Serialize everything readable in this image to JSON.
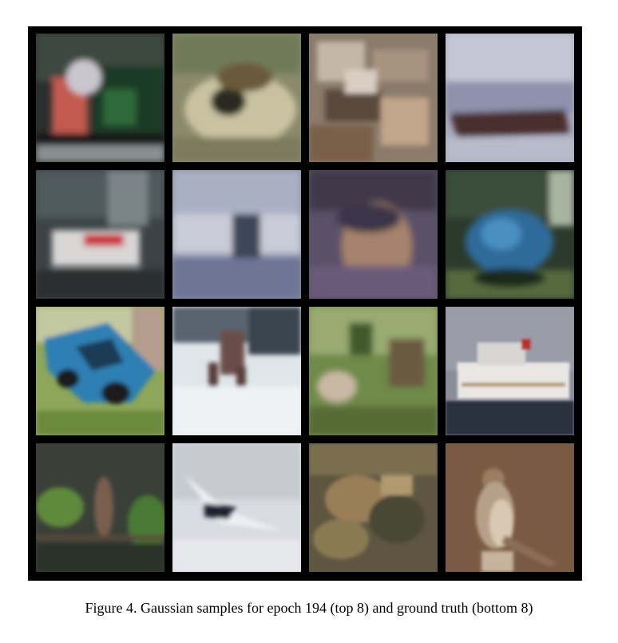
{
  "figure": {
    "caption": "Figure 4. Gaussian samples for epoch 194 (top 8) and ground truth (bottom 8)",
    "grid": {
      "rows": 4,
      "cols": 4
    }
  },
  "tiles": [
    {
      "id": "sample-1",
      "group": "generated",
      "depicts": "blurry train-like scene with red figure"
    },
    {
      "id": "sample-2",
      "group": "generated",
      "depicts": "blurry beige object with dark center"
    },
    {
      "id": "sample-3",
      "group": "generated",
      "depicts": "blurry brown textured clutter"
    },
    {
      "id": "sample-4",
      "group": "generated",
      "depicts": "blurry ship on water under grey sky"
    },
    {
      "id": "sample-5",
      "group": "generated",
      "depicts": "blurry vehicle with red stripe"
    },
    {
      "id": "sample-6",
      "group": "generated",
      "depicts": "blurry grey-blue scene with dark object"
    },
    {
      "id": "sample-7",
      "group": "generated",
      "depicts": "blurry animal face in purple tones"
    },
    {
      "id": "sample-8",
      "group": "generated",
      "depicts": "blurry blue truck among trees"
    },
    {
      "id": "truth-1",
      "group": "ground-truth",
      "depicts": "blue car on grass"
    },
    {
      "id": "truth-2",
      "group": "ground-truth",
      "depicts": "deer in snow"
    },
    {
      "id": "truth-3",
      "group": "ground-truth",
      "depicts": "deer among green foliage"
    },
    {
      "id": "truth-4",
      "group": "ground-truth",
      "depicts": "white cruise ship"
    },
    {
      "id": "truth-5",
      "group": "ground-truth",
      "depicts": "bird on branch with leaves"
    },
    {
      "id": "truth-6",
      "group": "ground-truth",
      "depicts": "airplane in light sky"
    },
    {
      "id": "truth-7",
      "group": "ground-truth",
      "depicts": "frog texture close-up"
    },
    {
      "id": "truth-8",
      "group": "ground-truth",
      "depicts": "sparrow on brown background"
    }
  ]
}
